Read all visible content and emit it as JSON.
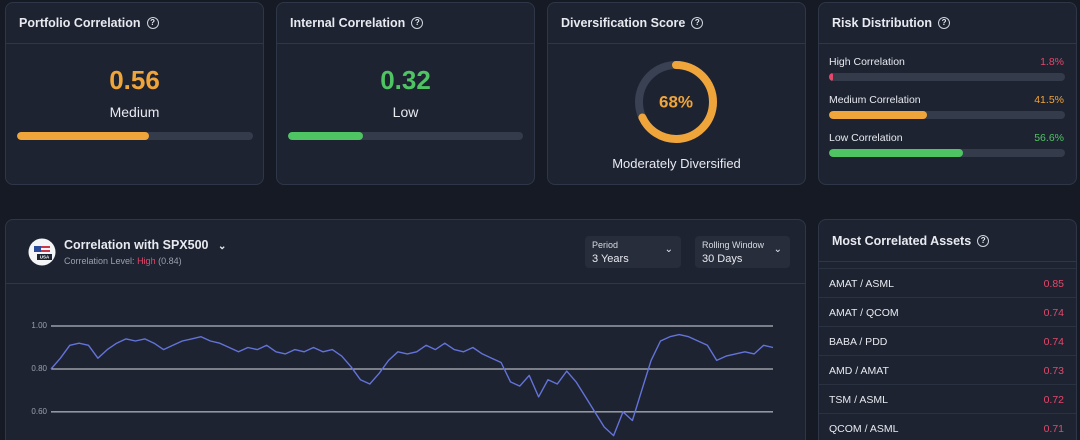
{
  "summary_cards": [
    {
      "title": "Portfolio Correlation",
      "value": 0.56,
      "label": "Medium",
      "color": "#f0a53a"
    },
    {
      "title": "Internal Correlation",
      "value": 0.32,
      "label": "Low",
      "color": "#4fc463"
    }
  ],
  "diversification": {
    "title": "Diversification Score",
    "score": {
      "value": 68,
      "label": "68%"
    },
    "label": "Moderately Diversified",
    "color": "#f0a53a"
  },
  "risk_distribution": {
    "title": "Risk Distribution",
    "rows": [
      {
        "name": "High Correlation",
        "share": {
          "value": 1.8,
          "label": "1.8%"
        },
        "color": "#e5486a"
      },
      {
        "name": "Medium Correlation",
        "share": {
          "value": 41.5,
          "label": "41.5%"
        },
        "color": "#f0a53a"
      },
      {
        "name": "Low Correlation",
        "share": {
          "value": 56.6,
          "label": "56.6%"
        },
        "color": "#4fc463"
      }
    ]
  },
  "correlation_panel": {
    "icon_label": "USA",
    "title": "Correlation with SPX500",
    "level_prefix": "Correlation Level:",
    "level": "High",
    "level_value": "(0.84)",
    "controls": [
      {
        "label": "Period",
        "value": "3 Years"
      },
      {
        "label": "Rolling Window",
        "value": "30 Days"
      }
    ]
  },
  "chart_data": {
    "type": "line",
    "color": "#6373d9",
    "ylim": [
      0.46,
      1.0
    ],
    "yticks": [
      {
        "value": 0.6,
        "label": "0.60"
      },
      {
        "value": 0.8,
        "label": "0.80"
      },
      {
        "value": 1.0,
        "label": "1.00"
      }
    ],
    "grid": true,
    "values": [
      0.8,
      0.85,
      0.91,
      0.92,
      0.91,
      0.85,
      0.89,
      0.92,
      0.94,
      0.93,
      0.94,
      0.92,
      0.89,
      0.91,
      0.93,
      0.94,
      0.95,
      0.93,
      0.92,
      0.9,
      0.88,
      0.9,
      0.89,
      0.91,
      0.88,
      0.87,
      0.89,
      0.88,
      0.9,
      0.88,
      0.89,
      0.86,
      0.81,
      0.75,
      0.73,
      0.78,
      0.84,
      0.88,
      0.87,
      0.88,
      0.91,
      0.89,
      0.92,
      0.89,
      0.88,
      0.9,
      0.87,
      0.85,
      0.83,
      0.74,
      0.72,
      0.77,
      0.67,
      0.75,
      0.73,
      0.79,
      0.74,
      0.67,
      0.6,
      0.53,
      0.49,
      0.6,
      0.56,
      0.7,
      0.84,
      0.93,
      0.95,
      0.96,
      0.95,
      0.93,
      0.91,
      0.84,
      0.86,
      0.87,
      0.88,
      0.87,
      0.91,
      0.9
    ]
  },
  "assets": {
    "title": "Most Correlated Assets",
    "rows": [
      {
        "pair": "AMAT / ASML",
        "value": 0.85
      },
      {
        "pair": "AMAT / QCOM",
        "value": 0.74
      },
      {
        "pair": "BABA / PDD",
        "value": 0.74
      },
      {
        "pair": "AMD / AMAT",
        "value": 0.73
      },
      {
        "pair": "TSM / ASML",
        "value": 0.72
      },
      {
        "pair": "QCOM / ASML",
        "value": 0.71
      }
    ]
  }
}
